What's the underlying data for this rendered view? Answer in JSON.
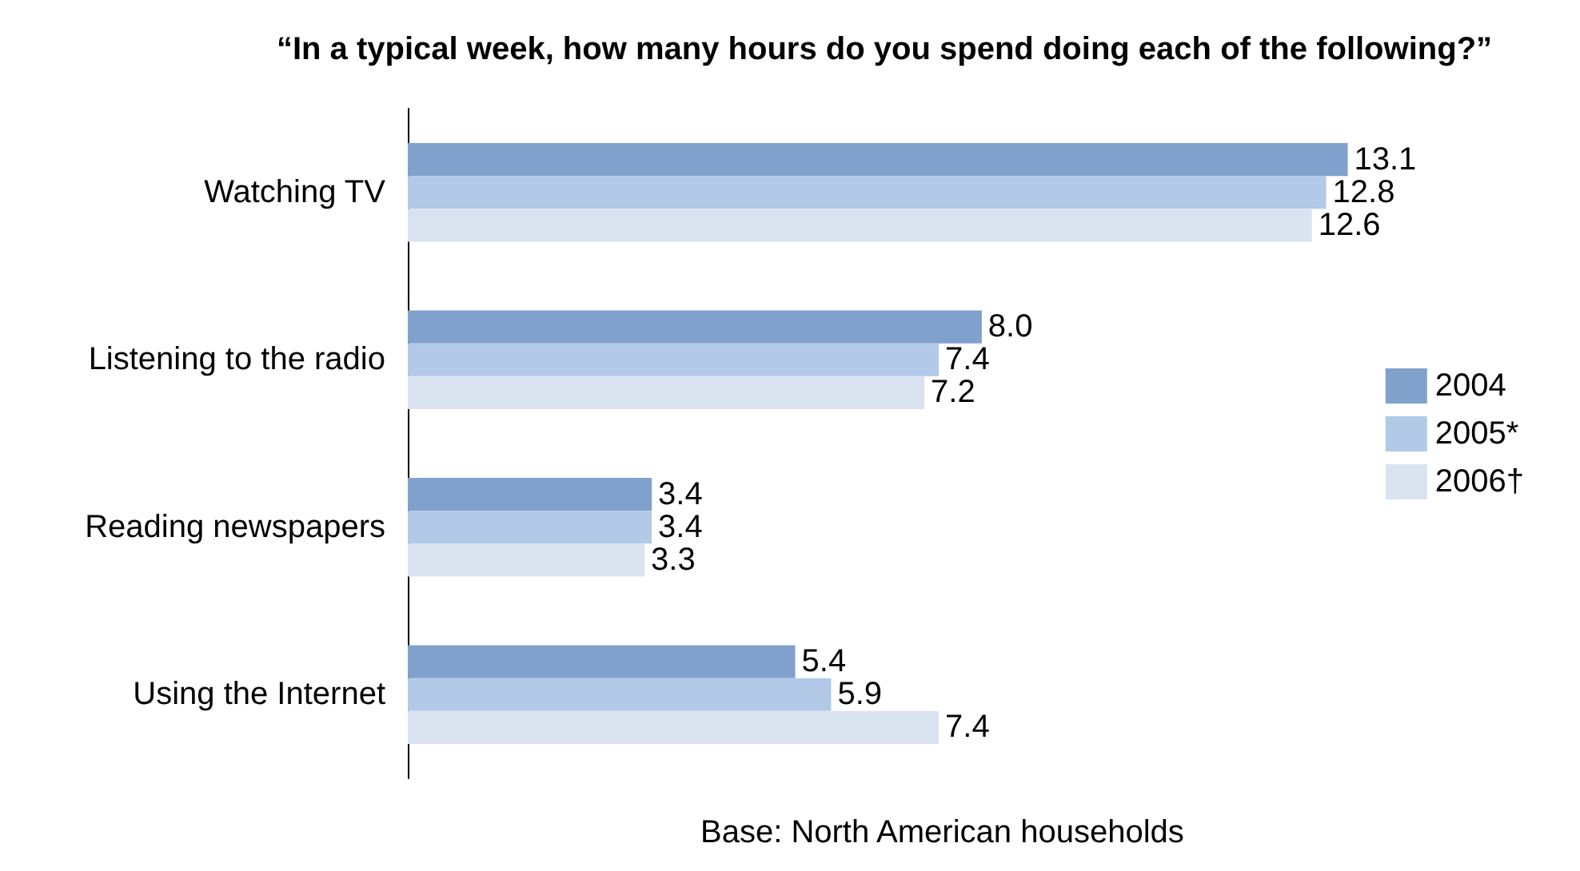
{
  "chart_data": {
    "type": "bar",
    "orientation": "horizontal",
    "title": "“In a typical week, how many hours do you spend doing each of the following?”",
    "categories": [
      "Watching TV",
      "Listening to the radio",
      "Reading newspapers",
      "Using the Internet"
    ],
    "series": [
      {
        "name": "2004",
        "color": "#7fa1cc",
        "values": [
          13.1,
          8.0,
          3.4,
          5.4
        ],
        "value_labels": [
          "13.1",
          "8.0",
          "3.4",
          "5.4"
        ]
      },
      {
        "name": "2005*",
        "color": "#b2c9e8",
        "values": [
          12.8,
          7.4,
          3.4,
          5.9
        ],
        "value_labels": [
          "12.8",
          "7.4",
          "3.4",
          "5.9"
        ]
      },
      {
        "name": "2006†",
        "color": "#d9e3f0",
        "values": [
          12.6,
          7.2,
          3.3,
          7.4
        ],
        "value_labels": [
          "12.6",
          "7.2",
          "3.3",
          "7.4"
        ]
      }
    ],
    "legend": "right",
    "tick_labels": "y",
    "annotations": [
      "Base: North American households"
    ]
  }
}
